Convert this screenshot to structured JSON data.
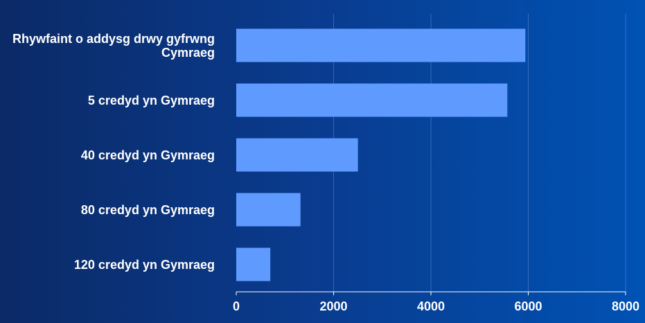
{
  "chart_data": {
    "type": "bar",
    "orientation": "horizontal",
    "categories": [
      "Rhywfaint o addysg drwy gyfrwng Cymraeg",
      "5 credyd yn Gymraeg",
      "40 credyd yn Gymraeg",
      "80 credyd yn Gymraeg",
      "120 credyd yn Gymraeg"
    ],
    "values": [
      5940,
      5570,
      2500,
      1320,
      700
    ],
    "color": "#5f9bff",
    "xlim": [
      0,
      8000
    ],
    "xticks": [
      0,
      2000,
      4000,
      6000,
      8000
    ],
    "grid": true
  }
}
